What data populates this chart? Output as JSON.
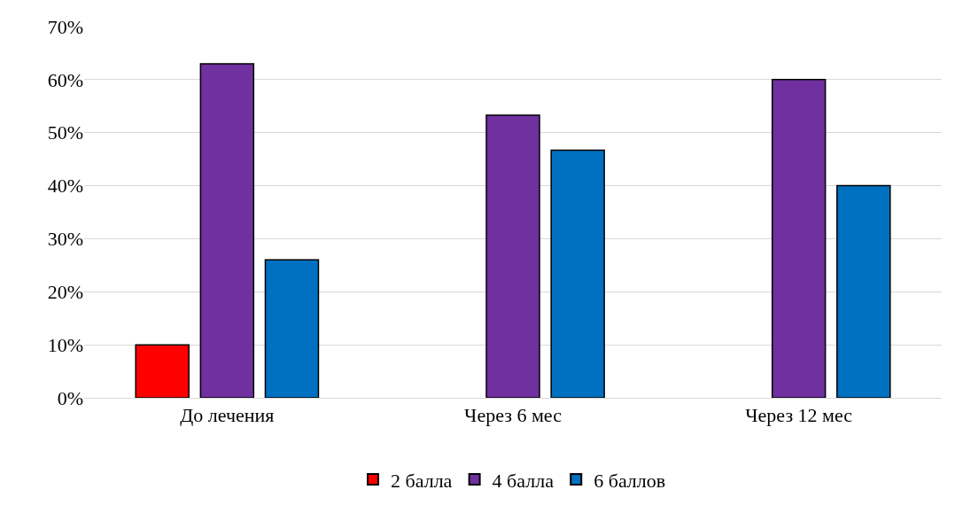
{
  "chart_data": {
    "type": "bar",
    "categories": [
      "До лечения",
      "Через 6 мес",
      "Через 12 мес"
    ],
    "series": [
      {
        "name": "2 балла",
        "color": "#ff0000",
        "values": [
          10,
          null,
          null
        ]
      },
      {
        "name": "4 балла",
        "color": "#7030a0",
        "values": [
          63,
          53.3,
          60
        ]
      },
      {
        "name": "6 баллов",
        "color": "#0070c0",
        "values": [
          26,
          46.7,
          40
        ]
      }
    ],
    "ylim": [
      0,
      70
    ],
    "yticks": [
      {
        "value": 0,
        "label": "0%"
      },
      {
        "value": 10,
        "label": "10%"
      },
      {
        "value": 20,
        "label": "20%"
      },
      {
        "value": 30,
        "label": "30%"
      },
      {
        "value": 40,
        "label": "40%"
      },
      {
        "value": 50,
        "label": "50%"
      },
      {
        "value": 60,
        "label": "60%"
      },
      {
        "value": 70,
        "label": "70%"
      }
    ],
    "grid": "y",
    "legend": "bottom"
  }
}
